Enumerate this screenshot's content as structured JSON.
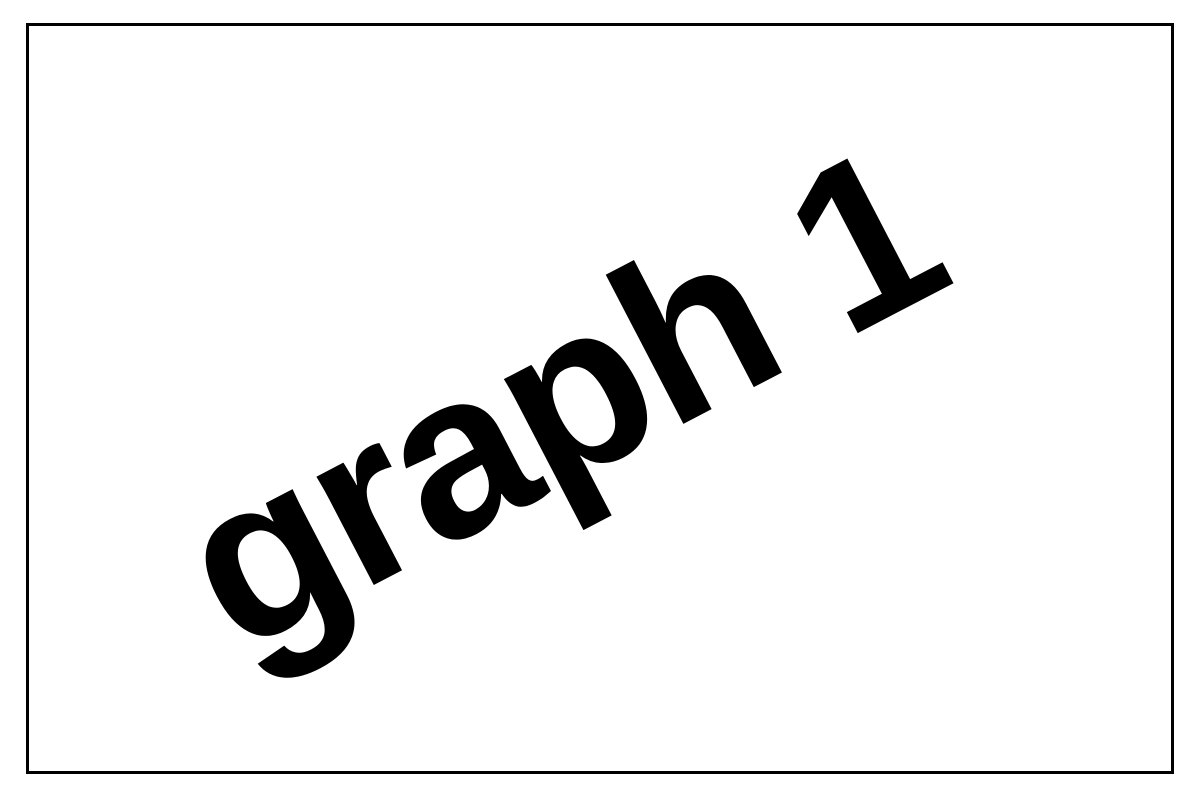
{
  "placeholder": {
    "label": "graph 1"
  },
  "colors": {
    "background": "#ffffff",
    "border": "#000000",
    "text": "#000000"
  }
}
